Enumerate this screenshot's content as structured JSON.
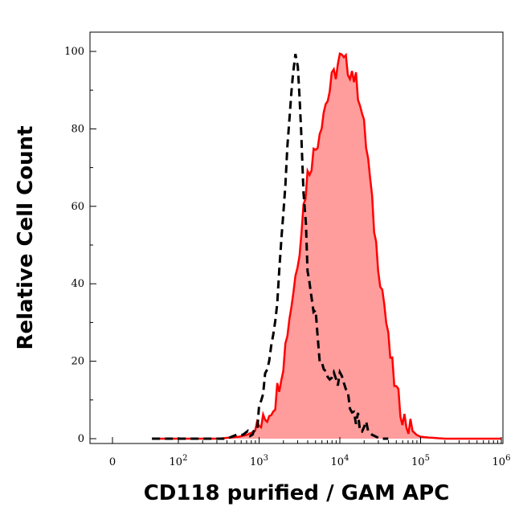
{
  "chart_data": {
    "type": "area",
    "xlabel": "CD118 purified / GAM APC",
    "ylabel": "Relative Cell Count",
    "x_scale": "biexponential",
    "ylim": [
      0,
      105
    ],
    "y_ticks": [
      0,
      20,
      40,
      60,
      80,
      100
    ],
    "x_ticks": [
      {
        "base": "0",
        "exp": ""
      },
      {
        "base": "10",
        "exp": "2"
      },
      {
        "base": "10",
        "exp": "3"
      },
      {
        "base": "10",
        "exp": "4"
      },
      {
        "base": "10",
        "exp": "5"
      },
      {
        "base": "10",
        "exp": "6"
      }
    ],
    "grid": false,
    "series": [
      {
        "style": "dashed-outline",
        "color": "#000000",
        "x_decades": [
          1.2,
          1.8,
          2.2,
          2.6,
          2.72,
          2.8,
          2.86,
          2.92,
          2.98,
          3.0,
          3.05,
          3.1,
          3.15,
          3.2,
          3.25,
          3.28,
          3.3,
          3.35,
          3.38,
          3.4,
          3.42,
          3.45,
          3.48,
          3.5,
          3.52,
          3.55,
          3.58,
          3.6,
          3.62,
          3.65,
          3.7,
          3.72,
          3.75,
          3.8,
          3.85,
          3.9,
          3.95,
          4.0,
          4.05,
          4.1,
          4.15,
          4.2,
          4.3,
          4.4,
          4.5,
          4.6
        ],
        "y": [
          0,
          0,
          0,
          0,
          1,
          1,
          2,
          3,
          5,
          7,
          12,
          18,
          25,
          32,
          42,
          55,
          60,
          75,
          85,
          90,
          95,
          100,
          96,
          90,
          82,
          65,
          55,
          45,
          40,
          38,
          32,
          28,
          22,
          20,
          16,
          16,
          14,
          17,
          13,
          10,
          9,
          5,
          3,
          1,
          0,
          0
        ]
      },
      {
        "style": "filled",
        "color": "#ff0000",
        "fill": "#ff9c9c",
        "x_decades": [
          1.2,
          2.0,
          2.5,
          2.75,
          2.85,
          2.95,
          3.0,
          3.05,
          3.1,
          3.15,
          3.2,
          3.25,
          3.3,
          3.35,
          3.4,
          3.45,
          3.5,
          3.55,
          3.6,
          3.65,
          3.7,
          3.75,
          3.8,
          3.85,
          3.9,
          3.95,
          4.0,
          4.05,
          4.1,
          4.15,
          4.2,
          4.25,
          4.3,
          4.35,
          4.4,
          4.45,
          4.5,
          4.55,
          4.6,
          4.65,
          4.7,
          4.75,
          4.8,
          4.85,
          4.9,
          4.95,
          5.0,
          5.1,
          5.3,
          5.6,
          6.0
        ],
        "y": [
          0,
          0,
          0,
          0.5,
          1,
          2,
          3,
          4,
          6,
          8,
          10,
          15,
          20,
          28,
          35,
          42,
          50,
          60,
          68,
          72,
          75,
          80,
          85,
          88,
          92,
          95,
          98,
          97,
          96,
          95,
          92,
          88,
          80,
          72,
          60,
          50,
          42,
          35,
          25,
          18,
          12,
          8,
          5,
          3,
          2,
          1,
          0.5,
          0.3,
          0,
          0,
          0
        ]
      }
    ]
  }
}
